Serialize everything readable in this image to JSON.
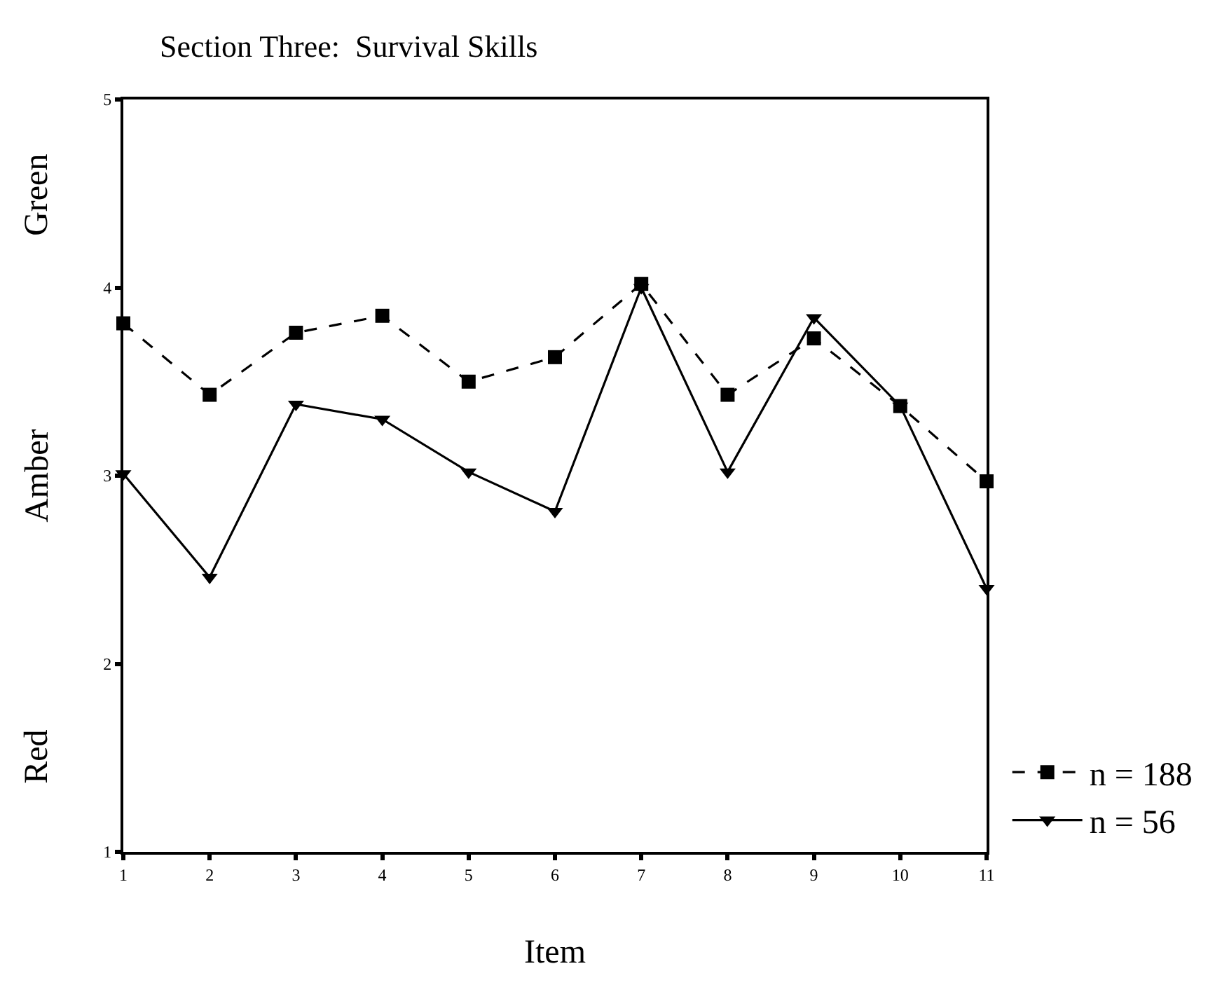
{
  "chart_data": {
    "type": "line",
    "title": "Section Three:  Survival Skills",
    "xlabel": "Item",
    "x": [
      1,
      2,
      3,
      4,
      5,
      6,
      7,
      8,
      9,
      10,
      11
    ],
    "series": [
      {
        "name": "n = 188",
        "color": "#000000",
        "marker": "square",
        "line_style": "dashed",
        "values": [
          3.81,
          3.43,
          3.76,
          3.85,
          3.5,
          3.63,
          4.02,
          3.43,
          3.73,
          3.37,
          2.97
        ]
      },
      {
        "name": "n = 56",
        "color": "#000000",
        "marker": "triangle",
        "line_style": "solid",
        "values": [
          3.01,
          2.46,
          3.38,
          3.3,
          3.02,
          2.81,
          4.0,
          3.02,
          3.84,
          3.37,
          2.4
        ]
      }
    ],
    "xlim": [
      1,
      11
    ],
    "xticks": [
      1,
      2,
      3,
      4,
      5,
      6,
      7,
      8,
      9,
      10,
      11
    ],
    "ylim": [
      1,
      5
    ],
    "yticks": [
      1,
      2,
      3,
      4,
      5
    ],
    "annotations": [
      "Green",
      "Amber",
      "Red"
    ],
    "legend": "bottom right"
  }
}
